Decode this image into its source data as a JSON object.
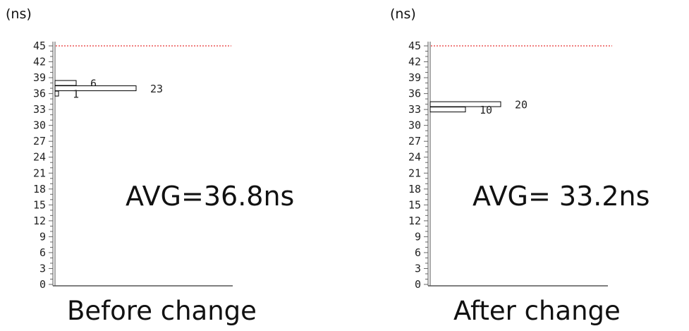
{
  "chart_data": [
    {
      "type": "bar",
      "orientation": "horizontal",
      "y_unit_label": "(ns)",
      "y_ticks": [
        0,
        3,
        6,
        9,
        12,
        15,
        18,
        21,
        24,
        27,
        30,
        33,
        36,
        39,
        42,
        45
      ],
      "ylim": [
        0,
        45
      ],
      "bars": [
        {
          "y": 38,
          "count": 6
        },
        {
          "y": 37,
          "count": 23
        },
        {
          "y": 36,
          "count": 1
        }
      ],
      "reference_line": {
        "y": 45,
        "color": "#e00000"
      },
      "annotation": "AVG=36.8ns",
      "caption": "Before change"
    },
    {
      "type": "bar",
      "orientation": "horizontal",
      "y_unit_label": "(ns)",
      "y_ticks": [
        0,
        3,
        6,
        9,
        12,
        15,
        18,
        21,
        24,
        27,
        30,
        33,
        36,
        39,
        42,
        45
      ],
      "ylim": [
        0,
        45
      ],
      "bars": [
        {
          "y": 34,
          "count": 20
        },
        {
          "y": 33,
          "count": 10
        }
      ],
      "reference_line": {
        "y": 45,
        "color": "#e00000"
      },
      "annotation": "AVG= 33.2ns",
      "caption": "After change"
    }
  ]
}
